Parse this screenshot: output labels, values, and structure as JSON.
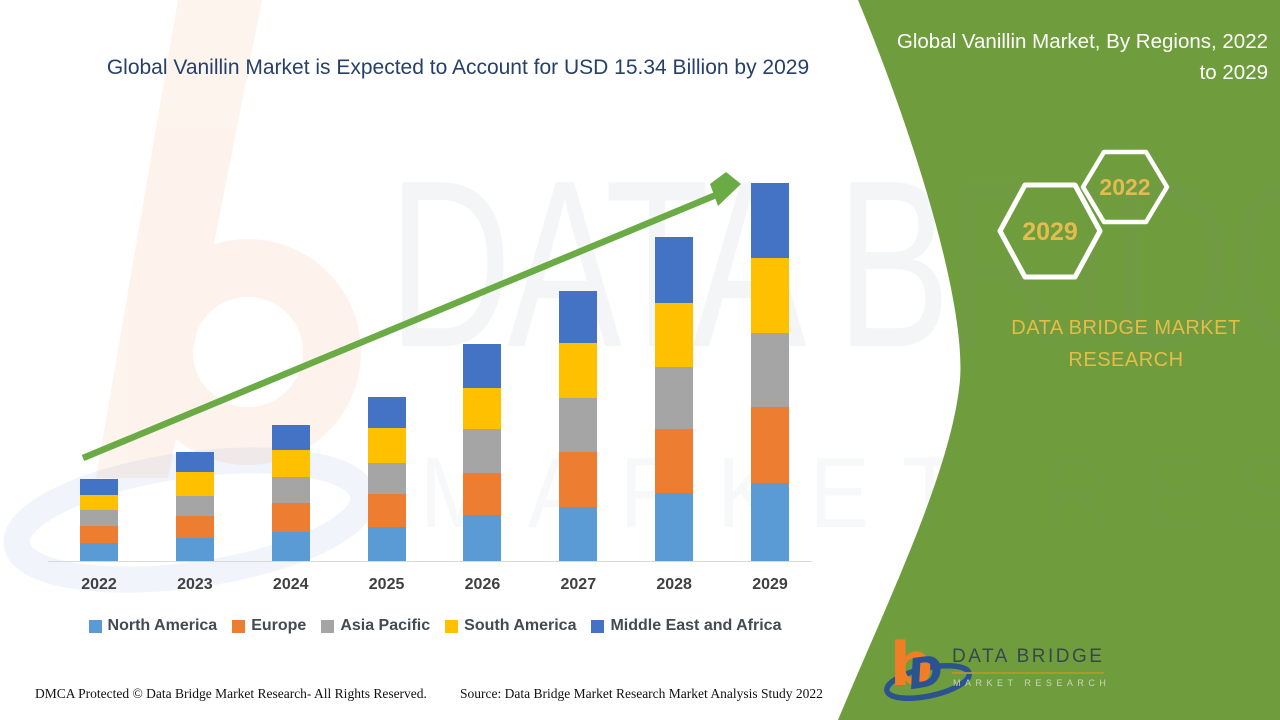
{
  "title": {
    "text": "Global Vanillin Market is Expected to Account for USD 15.34 Billion by 2029"
  },
  "sidebar": {
    "heading": "Global Vanillin Market, By Regions, 2022 to 2029",
    "hexagons": [
      {
        "label": "2029"
      },
      {
        "label": "2022"
      }
    ],
    "brand": "DATA BRIDGE MARKET RESEARCH",
    "panel_color": "#6F9D3D",
    "gold_color": "#E2BC4F"
  },
  "logo": {
    "name": "DATA BRIDGE",
    "sub": "MARKET RESEARCH"
  },
  "watermark": {
    "line1": "DATA BRIDGE",
    "line2": "MARKET RESEARCH"
  },
  "footer": {
    "left": "DMCA Protected © Data Bridge Market Research- All Rights Reserved.",
    "right": "Source: Data Bridge Market Research Market Analysis Study 2022"
  },
  "chart_data": {
    "type": "bar",
    "stacked": true,
    "unit": "USD Billion",
    "title": "Global Vanillin Market, By Regions, 2022 to 2029",
    "categories": [
      "2022",
      "2023",
      "2024",
      "2025",
      "2026",
      "2027",
      "2028",
      "2029"
    ],
    "series": [
      {
        "name": "North America",
        "color": "#5B9BD5",
        "values": [
          0.73,
          0.93,
          1.18,
          1.38,
          1.87,
          2.19,
          2.76,
          3.18
        ]
      },
      {
        "name": "Europe",
        "color": "#ED7D31",
        "values": [
          0.69,
          0.89,
          1.18,
          1.34,
          1.7,
          2.23,
          2.6,
          3.08
        ]
      },
      {
        "name": "Asia Pacific",
        "color": "#A5A5A5",
        "values": [
          0.65,
          0.81,
          1.06,
          1.26,
          1.79,
          2.19,
          2.52,
          3.0
        ]
      },
      {
        "name": "South America",
        "color": "#FFC000",
        "values": [
          0.61,
          0.97,
          1.1,
          1.42,
          1.66,
          2.23,
          2.6,
          3.04
        ]
      },
      {
        "name": "Middle East and Africa",
        "color": "#4472C4",
        "values": [
          0.65,
          0.81,
          1.01,
          1.26,
          1.79,
          2.11,
          2.64,
          3.04
        ]
      }
    ],
    "totals": [
      3.33,
      4.41,
      5.53,
      6.66,
      8.81,
      10.95,
      13.12,
      15.34
    ],
    "ylim": [
      0,
      16
    ],
    "gridlines": false,
    "y_axis_visible": false,
    "legend_position": "bottom",
    "trend_arrow": true,
    "arrow_color": "#6BAB46"
  }
}
